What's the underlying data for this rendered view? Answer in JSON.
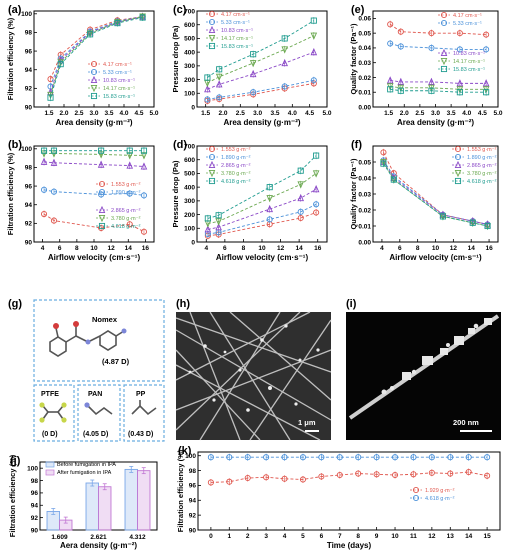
{
  "colors": {
    "c1": "#e0584f",
    "c2": "#4a90d9",
    "c3": "#8a48c7",
    "c4": "#6aa84f",
    "c5": "#1f9c8f",
    "before": "#7aa7e8",
    "after": "#c278d4"
  },
  "panel_labels": {
    "a": "(a)",
    "b": "(b)",
    "c": "(c)",
    "d": "(d)",
    "e": "(e)",
    "f": "(f)",
    "g": "(g)",
    "h": "(h)",
    "i": "(i)",
    "j": "(j)",
    "k": "(k)"
  },
  "molecules": {
    "nomex": {
      "name": "Nomex",
      "dipole": "(4.87 D)"
    },
    "ptfe": {
      "name": "PTFE",
      "dipole": "(0 D)"
    },
    "pan": {
      "name": "PAN",
      "dipole": "(4.05 D)"
    },
    "pp": {
      "name": "PP",
      "dipole": "(0.43 D)"
    }
  },
  "sem": {
    "h_scale": "1 μm",
    "i_scale": "200 nm"
  },
  "chart_data": [
    {
      "id": "a",
      "type": "line",
      "xlabel": "Area density (g·m⁻²)",
      "ylabel": "Filtration efficiency (%)",
      "xlim": [
        1.0,
        5.0
      ],
      "ylim": [
        90,
        100.3
      ],
      "xticks": [
        1.5,
        2.0,
        2.5,
        3.0,
        3.5,
        4.0,
        4.5,
        5.0
      ],
      "yticks": [
        90,
        92,
        94,
        96,
        98,
        100
      ],
      "x": [
        1.55,
        1.89,
        2.87,
        3.78,
        4.62
      ],
      "legend": "bottom-right",
      "series": [
        {
          "name": "4.17   cm·s⁻¹",
          "color": "c1",
          "marker": "circle",
          "values": [
            93.0,
            95.6,
            98.3,
            99.3,
            99.7
          ]
        },
        {
          "name": "5.33   cm·s⁻¹",
          "color": "c2",
          "marker": "circle",
          "values": [
            92.2,
            95.2,
            98.1,
            99.2,
            99.7
          ]
        },
        {
          "name": "10.83 cm·s⁻¹",
          "color": "c3",
          "marker": "triangle",
          "values": [
            91.6,
            95.0,
            98.0,
            99.1,
            99.7
          ]
        },
        {
          "name": "14.17 cm·s⁻¹",
          "color": "c4",
          "marker": "triangle-down",
          "values": [
            91.3,
            94.8,
            97.9,
            99.1,
            99.7
          ]
        },
        {
          "name": "15.83 cm·s⁻¹",
          "color": "c5",
          "marker": "square",
          "values": [
            91.0,
            94.6,
            97.8,
            99.0,
            99.6
          ]
        }
      ]
    },
    {
      "id": "b",
      "type": "line",
      "xlabel": "Airflow velocity (cm·s⁻¹)",
      "ylabel": "Filtration efficiency (%)",
      "xlim": [
        3,
        17
      ],
      "ylim": [
        90,
        100.3
      ],
      "xticks": [
        4,
        6,
        8,
        10,
        12,
        14,
        16
      ],
      "yticks": [
        90,
        92,
        94,
        96,
        98,
        100
      ],
      "x": [
        4.17,
        5.33,
        10.83,
        14.17,
        15.83
      ],
      "legend": "split",
      "series": [
        {
          "name": "1.553 g·m⁻²",
          "color": "c1",
          "marker": "circle",
          "values": [
            93.0,
            92.3,
            91.5,
            91.9,
            91.1
          ]
        },
        {
          "name": "1.890 g·m⁻²",
          "color": "c2",
          "marker": "circle",
          "values": [
            95.6,
            95.4,
            95.1,
            95.2,
            95.0
          ]
        },
        {
          "name": "2.865 g·m⁻²",
          "color": "c3",
          "marker": "triangle",
          "values": [
            98.6,
            98.5,
            98.3,
            98.2,
            98.1
          ]
        },
        {
          "name": "3.780 g·m⁻²",
          "color": "c4",
          "marker": "triangle-down",
          "values": [
            99.5,
            99.5,
            99.4,
            99.3,
            99.3
          ]
        },
        {
          "name": "4.618 g·m⁻²",
          "color": "c5",
          "marker": "square",
          "values": [
            99.8,
            99.8,
            99.8,
            99.8,
            99.8
          ]
        }
      ]
    },
    {
      "id": "c",
      "type": "line",
      "xlabel": "Area density (g·m⁻²)",
      "ylabel": "Pressure drop (Pa)",
      "xlim": [
        1.25,
        5.0
      ],
      "ylim": [
        0,
        700
      ],
      "xticks": [
        1.5,
        2.0,
        2.5,
        3.0,
        3.5,
        4.0,
        4.5,
        5.0
      ],
      "yticks": [
        0,
        100,
        200,
        300,
        400,
        500,
        600,
        700
      ],
      "x": [
        1.55,
        1.89,
        2.87,
        3.78,
        4.62
      ],
      "legend": "top-left",
      "series": [
        {
          "name": "4.17   cm·s⁻¹",
          "color": "c1",
          "marker": "circle",
          "values": [
            45,
            58,
            92,
            135,
            172
          ]
        },
        {
          "name": "5.33   cm·s⁻¹",
          "color": "c2",
          "marker": "circle",
          "values": [
            55,
            70,
            108,
            150,
            195
          ]
        },
        {
          "name": "10.83 cm·s⁻¹",
          "color": "c3",
          "marker": "triangle",
          "values": [
            130,
            165,
            240,
            320,
            400
          ]
        },
        {
          "name": "14.17 cm·s⁻¹",
          "color": "c4",
          "marker": "triangle-down",
          "values": [
            175,
            220,
            320,
            420,
            520
          ]
        },
        {
          "name": "15.83 cm·s⁻¹",
          "color": "c5",
          "marker": "square",
          "values": [
            215,
            275,
            385,
            500,
            630
          ]
        }
      ]
    },
    {
      "id": "d",
      "type": "line",
      "xlabel": "Airflow velocity (cm·s⁻¹)",
      "ylabel": "Pressure drop (Pa)",
      "xlim": [
        3,
        17
      ],
      "ylim": [
        0,
        700
      ],
      "xticks": [
        4,
        6,
        8,
        10,
        12,
        14,
        16
      ],
      "yticks": [
        0,
        100,
        200,
        300,
        400,
        500,
        600,
        700
      ],
      "x": [
        4.17,
        5.33,
        10.83,
        14.17,
        15.83
      ],
      "legend": "top-left",
      "series": [
        {
          "name": "1.553 g·m⁻²",
          "color": "c1",
          "marker": "circle",
          "values": [
            45,
            55,
            130,
            175,
            215
          ]
        },
        {
          "name": "1.890 g·m⁻²",
          "color": "c2",
          "marker": "circle",
          "values": [
            58,
            70,
            165,
            220,
            275
          ]
        },
        {
          "name": "2.865 g·m⁻²",
          "color": "c3",
          "marker": "triangle",
          "values": [
            92,
            108,
            240,
            320,
            385
          ]
        },
        {
          "name": "3.780 g·m⁻²",
          "color": "c4",
          "marker": "triangle-down",
          "values": [
            135,
            150,
            320,
            420,
            500
          ]
        },
        {
          "name": "4.618 g·m⁻²",
          "color": "c5",
          "marker": "square",
          "values": [
            172,
            195,
            400,
            520,
            630
          ]
        }
      ]
    },
    {
      "id": "e",
      "type": "line",
      "xlabel": "Area density (g·m⁻²)",
      "ylabel": "Quality factor (Pa⁻¹)",
      "xlim": [
        1.0,
        5.0
      ],
      "ylim": [
        0,
        0.065
      ],
      "xticks": [
        1.5,
        2.0,
        2.5,
        3.0,
        3.5,
        4.0,
        4.5,
        5.0
      ],
      "yticks": [
        0.0,
        0.01,
        0.02,
        0.03,
        0.04,
        0.05,
        0.06
      ],
      "x": [
        1.55,
        1.89,
        2.87,
        3.78,
        4.62
      ],
      "legend": "split",
      "series": [
        {
          "name": "4.17   cm·s⁻¹",
          "color": "c1",
          "marker": "circle",
          "values": [
            0.056,
            0.051,
            0.05,
            0.05,
            0.049
          ]
        },
        {
          "name": "5.33   cm·s⁻¹",
          "color": "c2",
          "marker": "circle",
          "values": [
            0.043,
            0.041,
            0.04,
            0.039,
            0.039
          ]
        },
        {
          "name": "10.83 cm·s⁻¹",
          "color": "c3",
          "marker": "triangle",
          "values": [
            0.018,
            0.017,
            0.017,
            0.016,
            0.016
          ]
        },
        {
          "name": "14.17 cm·s⁻¹",
          "color": "c4",
          "marker": "triangle-down",
          "values": [
            0.014,
            0.013,
            0.013,
            0.012,
            0.012
          ]
        },
        {
          "name": "15.83 cm·s⁻¹",
          "color": "c5",
          "marker": "square",
          "values": [
            0.012,
            0.011,
            0.011,
            0.01,
            0.01
          ]
        }
      ]
    },
    {
      "id": "f",
      "type": "line",
      "xlabel": "Airflow velocity (cm·s⁻¹)",
      "ylabel": "Quality factor (Pa⁻¹)",
      "xlim": [
        3,
        17
      ],
      "ylim": [
        0,
        0.06
      ],
      "xticks": [
        4,
        6,
        8,
        10,
        12,
        14,
        16
      ],
      "yticks": [
        0.0,
        0.01,
        0.02,
        0.03,
        0.04,
        0.05
      ],
      "x": [
        4.17,
        5.33,
        10.83,
        14.17,
        15.83
      ],
      "legend": "top-right",
      "series": [
        {
          "name": "1.553 g·m⁻²",
          "color": "c1",
          "marker": "circle",
          "values": [
            0.056,
            0.043,
            0.017,
            0.013,
            0.011
          ]
        },
        {
          "name": "1.890 g·m⁻²",
          "color": "c2",
          "marker": "circle",
          "values": [
            0.051,
            0.041,
            0.017,
            0.013,
            0.011
          ]
        },
        {
          "name": "2.865 g·m⁻²",
          "color": "c3",
          "marker": "triangle",
          "values": [
            0.05,
            0.04,
            0.017,
            0.013,
            0.011
          ]
        },
        {
          "name": "3.780 g·m⁻²",
          "color": "c4",
          "marker": "triangle-down",
          "values": [
            0.05,
            0.039,
            0.016,
            0.012,
            0.01
          ]
        },
        {
          "name": "4.618 g·m⁻²",
          "color": "c5",
          "marker": "square",
          "values": [
            0.049,
            0.039,
            0.016,
            0.012,
            0.01
          ]
        }
      ]
    },
    {
      "id": "j",
      "type": "bar",
      "xlabel": "Aera density (g·m⁻²)",
      "ylabel": "Filtration efficiency (%)",
      "ylim": [
        90,
        101
      ],
      "yticks": [
        90,
        92,
        94,
        96,
        98,
        100
      ],
      "categories": [
        "1.609",
        "2.621",
        "4.312"
      ],
      "legend": "top-left",
      "series": [
        {
          "name": "Before fumigation in IPA",
          "color": "before",
          "values": [
            93.0,
            97.6,
            99.8
          ]
        },
        {
          "name": "After fumigation in IPA",
          "color": "after",
          "values": [
            91.6,
            97.0,
            99.6
          ]
        }
      ]
    },
    {
      "id": "k",
      "type": "line",
      "xlabel": "Time (days)",
      "ylabel": "Filtration efficiency (%)",
      "xlim": [
        -0.7,
        15.7
      ],
      "ylim": [
        90,
        100.5
      ],
      "xticks": [
        0,
        1,
        2,
        3,
        4,
        5,
        6,
        7,
        8,
        9,
        10,
        11,
        12,
        13,
        14,
        15
      ],
      "yticks": [
        90,
        92,
        94,
        96,
        98,
        100
      ],
      "x": [
        0,
        1,
        2,
        3,
        4,
        5,
        6,
        7,
        8,
        9,
        10,
        11,
        12,
        13,
        14,
        15
      ],
      "legend": "bottom-right",
      "series": [
        {
          "name": "1.929 g·m⁻²",
          "color": "c1",
          "marker": "circle",
          "values": [
            96.4,
            96.5,
            97.0,
            97.1,
            96.9,
            96.8,
            97.2,
            97.4,
            97.6,
            97.5,
            97.4,
            97.5,
            97.7,
            97.6,
            97.8,
            97.3
          ]
        },
        {
          "name": "4.618 g·m⁻²",
          "color": "c2",
          "marker": "circle",
          "values": [
            99.8,
            99.8,
            99.8,
            99.8,
            99.8,
            99.8,
            99.8,
            99.8,
            99.8,
            99.8,
            99.8,
            99.8,
            99.8,
            99.8,
            99.8,
            99.8
          ]
        }
      ]
    }
  ]
}
